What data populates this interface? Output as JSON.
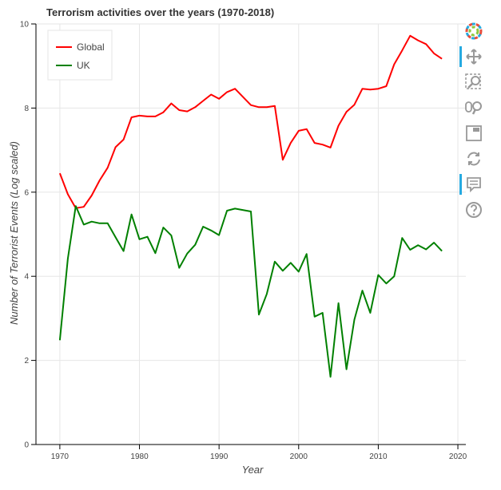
{
  "chart_data": {
    "type": "line",
    "title": "Terrorism activities over the years (1970-2018)",
    "xlabel": "Year",
    "ylabel": "Number of Terrorist Events (Log scaled)",
    "xlim": [
      1967,
      2021
    ],
    "ylim": [
      0,
      10
    ],
    "x_ticks": [
      1970,
      1980,
      1990,
      2000,
      2010,
      2020
    ],
    "y_ticks": [
      0,
      2,
      4,
      6,
      8,
      10
    ],
    "grid": true,
    "legend_position": "top-left",
    "x": [
      1970,
      1971,
      1972,
      1973,
      1974,
      1975,
      1976,
      1977,
      1978,
      1979,
      1980,
      1981,
      1982,
      1983,
      1984,
      1985,
      1986,
      1987,
      1988,
      1989,
      1990,
      1991,
      1992,
      1994,
      1995,
      1996,
      1997,
      1998,
      1999,
      2000,
      2001,
      2002,
      2003,
      2004,
      2005,
      2006,
      2007,
      2008,
      2009,
      2010,
      2011,
      2012,
      2013,
      2014,
      2015,
      2016,
      2017,
      2018
    ],
    "series": [
      {
        "name": "Global",
        "color": "#ff0000",
        "values": [
          6.45,
          5.95,
          5.62,
          5.65,
          5.92,
          6.28,
          6.58,
          7.07,
          7.25,
          7.78,
          7.82,
          7.8,
          7.8,
          7.9,
          8.11,
          7.95,
          7.92,
          8.02,
          8.17,
          8.32,
          8.22,
          8.38,
          8.46,
          8.07,
          8.02,
          8.02,
          8.05,
          6.77,
          7.17,
          7.46,
          7.5,
          7.17,
          7.13,
          7.06,
          7.58,
          7.91,
          8.08,
          8.46,
          8.44,
          8.46,
          8.52,
          9.04,
          9.37,
          9.72,
          9.61,
          9.52,
          9.3,
          9.17
        ]
      },
      {
        "name": "UK",
        "color": "#008000",
        "values": [
          2.48,
          4.42,
          5.67,
          5.23,
          5.3,
          5.26,
          5.26,
          4.93,
          4.6,
          5.47,
          4.88,
          4.94,
          4.55,
          5.16,
          4.97,
          4.2,
          4.54,
          4.75,
          5.18,
          5.09,
          4.98,
          5.56,
          5.61,
          5.54,
          3.09,
          3.58,
          4.35,
          4.13,
          4.32,
          4.11,
          4.53,
          3.04,
          3.13,
          1.61,
          3.36,
          1.79,
          2.97,
          3.66,
          3.13,
          4.03,
          3.83,
          4.0,
          4.91,
          4.63,
          4.74,
          4.64,
          4.8,
          4.6
        ]
      }
    ]
  },
  "toolbar": {
    "tools": [
      "logo-icon",
      "pan-icon",
      "box-zoom-icon",
      "wheel-zoom-icon",
      "save-icon",
      "reset-icon",
      "hover-icon",
      "help-icon"
    ]
  }
}
